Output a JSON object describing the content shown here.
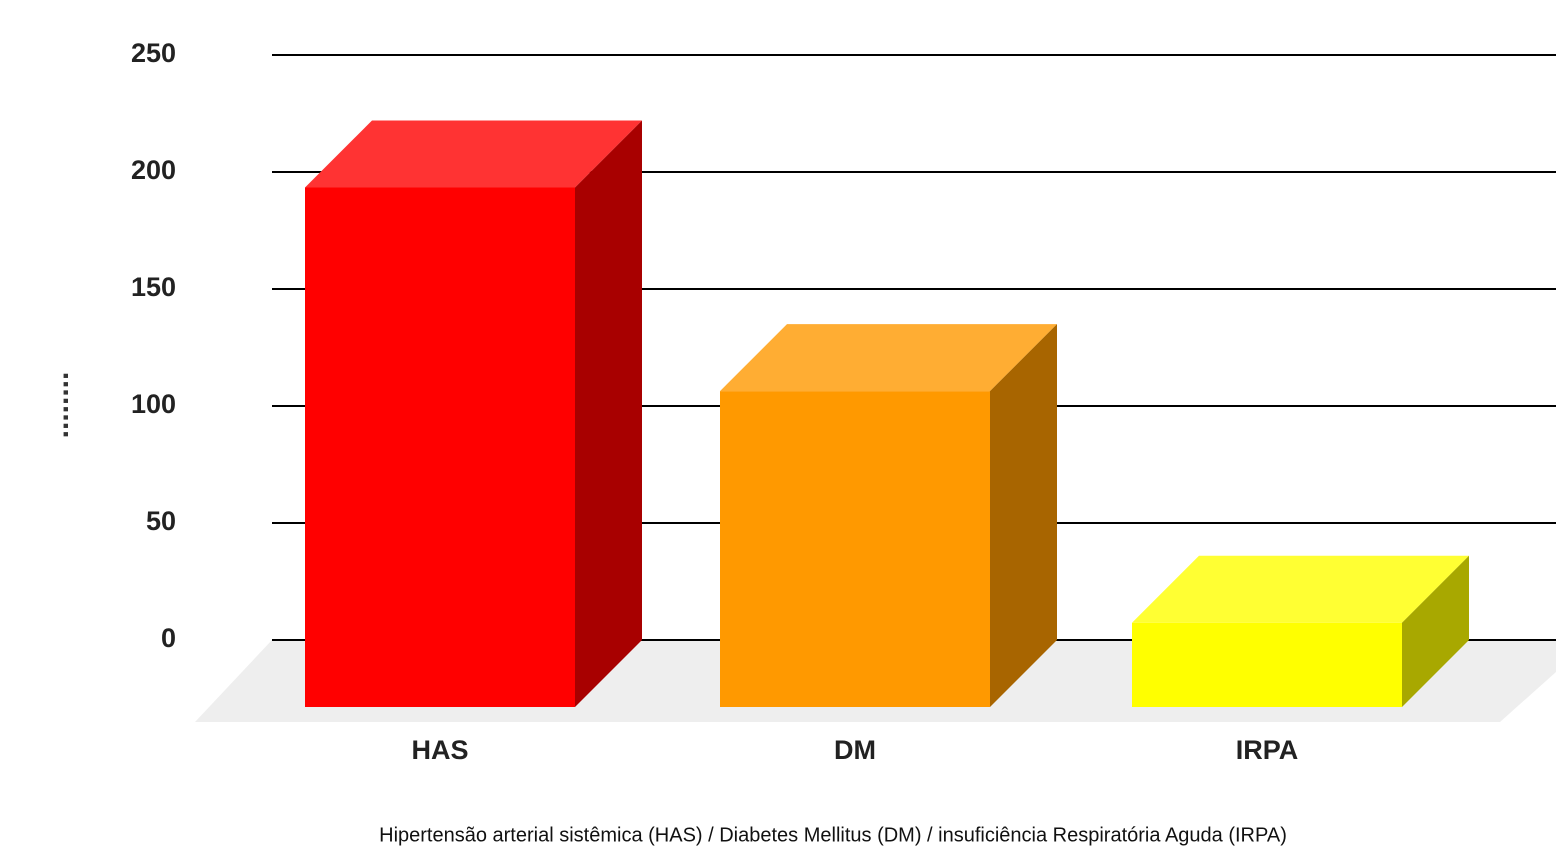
{
  "chart_data": {
    "type": "bar3d",
    "y_label": "........",
    "x_label": "Hipertensão arterial sistêmica (HAS) / Diabetes Mellitus (DM) / insuficiência Respiratória Aguda (IRPA)",
    "categories": [
      "HAS",
      "DM",
      "IRPA"
    ],
    "values": [
      222,
      135,
      36
    ],
    "colors": [
      "#ff0000",
      "#ff9900",
      "#ffff00"
    ],
    "ylim": [
      0,
      250
    ],
    "yticks": [
      0,
      50,
      100,
      150,
      200,
      250
    ],
    "grid": true
  }
}
